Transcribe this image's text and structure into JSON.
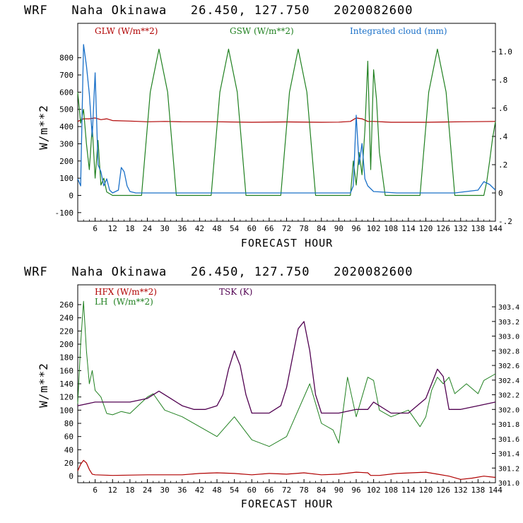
{
  "chart_data": [
    {
      "type": "line",
      "title": "WRF   Naha Okinawa   26.450, 127.750   2020082600",
      "xlabel": "FORECAST HOUR",
      "ylabel": "W/m**2",
      "xlim": [
        0,
        144
      ],
      "ylim": [
        -150,
        1000
      ],
      "x_ticks": [
        6,
        12,
        18,
        24,
        30,
        36,
        42,
        48,
        54,
        60,
        66,
        72,
        78,
        84,
        90,
        96,
        102,
        108,
        114,
        120,
        126,
        132,
        138,
        144
      ],
      "y_ticks": [
        -100,
        0,
        100,
        200,
        300,
        400,
        500,
        600,
        700,
        800
      ],
      "y2lim": [
        -0.2,
        1.2
      ],
      "y2_ticks": [
        -0.2,
        0,
        0.2,
        0.4,
        0.6,
        0.8,
        1.0
      ],
      "y2_tick_labels": [
        "-.2",
        "0",
        ".2",
        ".4",
        ".6",
        ".8",
        "1.0"
      ],
      "legend": [
        "GLW (W/m**2)",
        "GSW (W/m**2)",
        "Integrated cloud (mm)"
      ],
      "colors": {
        "glw": "#b00000",
        "gsw": "#208020",
        "cloud": "#1a70c8"
      },
      "series": [
        {
          "name": "GLW (W/m**2)",
          "axis": "left",
          "x": [
            0,
            2,
            4,
            6,
            8,
            10,
            12,
            18,
            24,
            30,
            36,
            48,
            60,
            72,
            84,
            90,
            94,
            96,
            98,
            100,
            102,
            108,
            120,
            132,
            144
          ],
          "values": [
            430,
            445,
            445,
            450,
            440,
            445,
            435,
            432,
            428,
            430,
            428,
            428,
            425,
            427,
            425,
            426,
            430,
            450,
            445,
            430,
            430,
            425,
            425,
            428,
            430
          ]
        },
        {
          "name": "GSW (W/m**2)",
          "axis": "left",
          "x": [
            0,
            1,
            2,
            3,
            4,
            5,
            6,
            7,
            8,
            9,
            10,
            12,
            22,
            25,
            28,
            31,
            34,
            46,
            49,
            52,
            55,
            58,
            70,
            73,
            76,
            79,
            82,
            94,
            95,
            96,
            97,
            98,
            99,
            100,
            101,
            102,
            103,
            104,
            106,
            118,
            121,
            124,
            127,
            130,
            140,
            141,
            142,
            143,
            144
          ],
          "values": [
            600,
            420,
            500,
            300,
            150,
            400,
            100,
            320,
            60,
            100,
            20,
            0,
            0,
            600,
            850,
            600,
            0,
            0,
            600,
            850,
            600,
            0,
            0,
            600,
            850,
            600,
            0,
            0,
            200,
            60,
            250,
            120,
            380,
            780,
            150,
            730,
            560,
            250,
            0,
            0,
            600,
            850,
            600,
            0,
            0,
            80,
            200,
            330,
            430
          ]
        },
        {
          "name": "Integrated cloud (mm)",
          "axis": "right",
          "x": [
            0,
            1,
            2,
            3,
            4,
            5,
            6,
            7,
            8,
            9,
            10,
            11,
            12,
            14,
            15,
            16,
            17,
            18,
            20,
            40,
            80,
            94,
            95,
            96,
            97,
            98,
            99,
            100,
            102,
            110,
            130,
            138,
            140,
            142,
            144
          ],
          "values": [
            0.1,
            0.05,
            1.05,
            0.9,
            0.7,
            0.4,
            0.85,
            0.2,
            0.15,
            0.05,
            0.1,
            0.02,
            0.0,
            0.02,
            0.18,
            0.15,
            0.05,
            0.01,
            0.0,
            0.0,
            0.0,
            0.0,
            0.05,
            0.55,
            0.2,
            0.35,
            0.1,
            0.05,
            0.01,
            0.0,
            0.0,
            0.02,
            0.08,
            0.06,
            0.02
          ]
        }
      ]
    },
    {
      "type": "line",
      "title": "WRF   Naha Okinawa   26.450, 127.750   2020082600",
      "xlabel": "FORECAST HOUR",
      "ylabel": "W/m**2",
      "xlim": [
        0,
        144
      ],
      "ylim": [
        -10,
        290
      ],
      "x_ticks": [
        6,
        12,
        18,
        24,
        30,
        36,
        42,
        48,
        54,
        60,
        66,
        72,
        78,
        84,
        90,
        96,
        102,
        108,
        114,
        120,
        126,
        132,
        138,
        144
      ],
      "y_ticks": [
        0,
        20,
        40,
        60,
        80,
        100,
        120,
        140,
        160,
        180,
        200,
        220,
        240,
        260
      ],
      "y2lim": [
        301.0,
        303.7
      ],
      "y2_ticks": [
        301.0,
        301.2,
        301.4,
        301.6,
        301.8,
        302.0,
        302.2,
        302.4,
        302.6,
        302.8,
        303.0,
        303.2,
        303.4
      ],
      "y2_tick_labels": [
        "301.0",
        "301.2",
        "301.4",
        "301.6",
        "301.8",
        "302.0",
        "302.2",
        "302.4",
        "302.6",
        "302.8",
        "303.0",
        "303.2",
        "303.4"
      ],
      "legend": [
        "HFX (W/m**2)",
        "LH  (W/m**2)",
        "TSK (K)"
      ],
      "colors": {
        "hfx": "#b00000",
        "lh": "#208020",
        "tsk": "#500050"
      },
      "series": [
        {
          "name": "HFX (W/m**2)",
          "axis": "left",
          "x": [
            0,
            1,
            2,
            3,
            4,
            5,
            6,
            12,
            24,
            36,
            42,
            48,
            54,
            60,
            66,
            72,
            78,
            84,
            90,
            96,
            100,
            101,
            104,
            110,
            120,
            124,
            128,
            132,
            136,
            140,
            144
          ],
          "values": [
            8,
            18,
            24,
            20,
            10,
            3,
            2,
            1,
            2,
            2,
            4,
            5,
            4,
            2,
            4,
            3,
            5,
            2,
            3,
            6,
            5,
            1,
            1,
            4,
            6,
            3,
            0,
            -5,
            -3,
            0,
            -2
          ]
        },
        {
          "name": "LH  (W/m**2)",
          "axis": "left",
          "x": [
            0,
            1,
            2,
            3,
            4,
            5,
            6,
            8,
            10,
            12,
            15,
            18,
            24,
            26,
            30,
            36,
            42,
            48,
            54,
            60,
            66,
            72,
            76,
            80,
            84,
            88,
            90,
            93,
            96,
            100,
            102,
            104,
            108,
            114,
            118,
            120,
            122,
            124,
            126,
            128,
            130,
            134,
            138,
            140,
            144
          ],
          "values": [
            110,
            200,
            265,
            190,
            140,
            160,
            130,
            120,
            95,
            93,
            98,
            95,
            120,
            125,
            100,
            90,
            75,
            60,
            90,
            55,
            45,
            60,
            100,
            140,
            80,
            70,
            50,
            150,
            90,
            150,
            145,
            100,
            90,
            100,
            75,
            90,
            130,
            150,
            140,
            150,
            125,
            140,
            125,
            145,
            155
          ]
        },
        {
          "name": "TSK (K)",
          "axis": "right",
          "x": [
            0,
            6,
            12,
            18,
            24,
            28,
            32,
            36,
            40,
            44,
            48,
            50,
            52,
            54,
            56,
            58,
            60,
            66,
            70,
            72,
            74,
            76,
            78,
            80,
            82,
            84,
            90,
            96,
            100,
            102,
            108,
            114,
            120,
            122,
            124,
            126,
            128,
            132,
            138,
            144
          ],
          "values": [
            302.05,
            302.1,
            302.1,
            302.1,
            302.15,
            302.25,
            302.15,
            302.05,
            302.0,
            302.0,
            302.05,
            302.2,
            302.55,
            302.8,
            302.6,
            302.2,
            301.95,
            301.95,
            302.05,
            302.3,
            302.7,
            303.1,
            303.2,
            302.8,
            302.2,
            301.95,
            301.95,
            302.0,
            302.0,
            302.1,
            301.95,
            301.95,
            302.15,
            302.35,
            302.55,
            302.45,
            302.0,
            302.0,
            302.05,
            302.1
          ]
        }
      ]
    }
  ]
}
